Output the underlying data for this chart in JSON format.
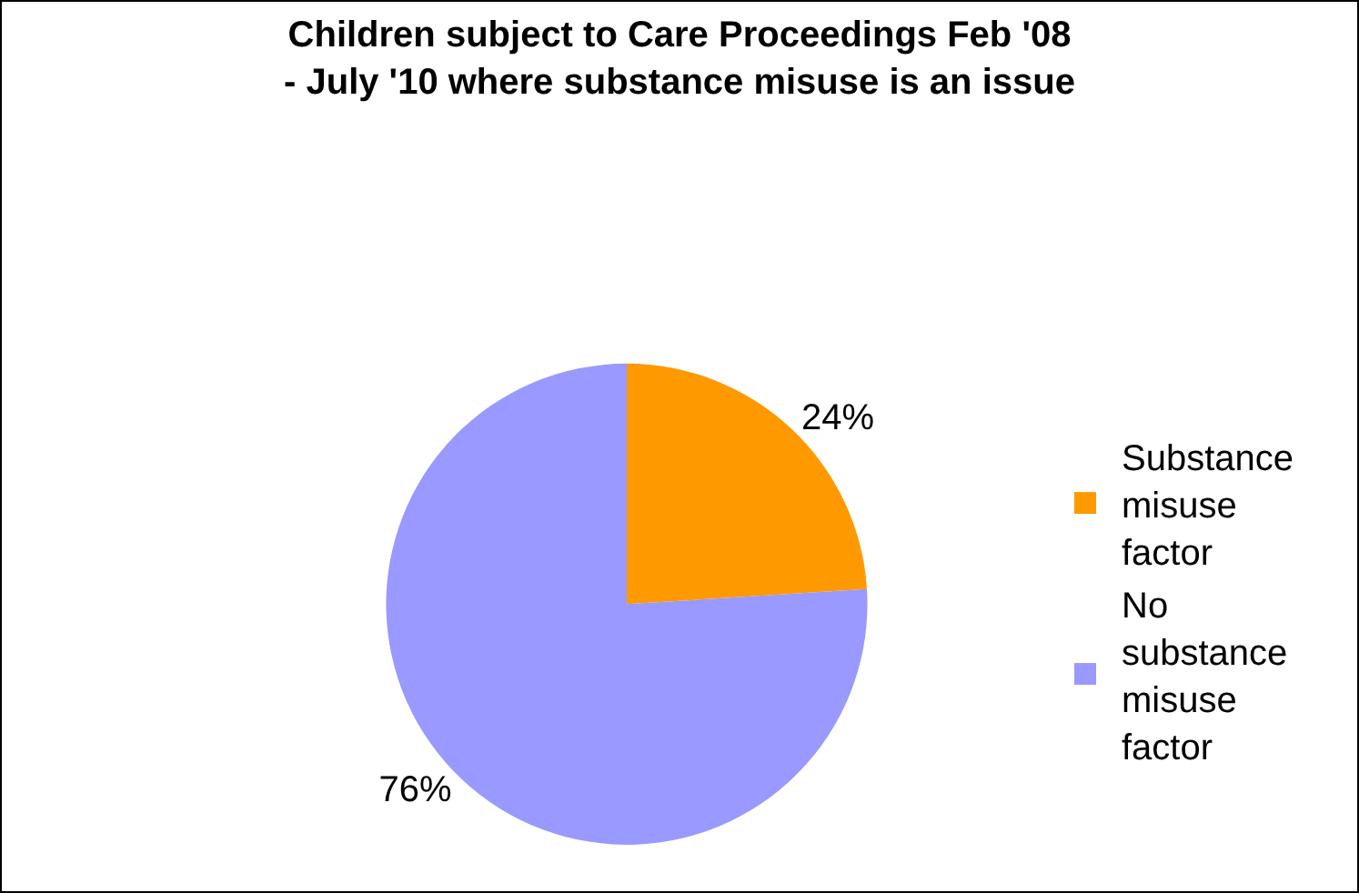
{
  "chart_data": {
    "type": "pie",
    "title": "Children subject to Care Proceedings Feb '08 - July '10 where substance misuse is an issue",
    "categories": [
      "Substance misuse factor",
      "No substance misuse factor"
    ],
    "values": [
      24,
      76
    ],
    "colors": [
      "#ff9900",
      "#9999ff"
    ],
    "value_labels": [
      "24%",
      "76%"
    ],
    "legend": "right"
  }
}
